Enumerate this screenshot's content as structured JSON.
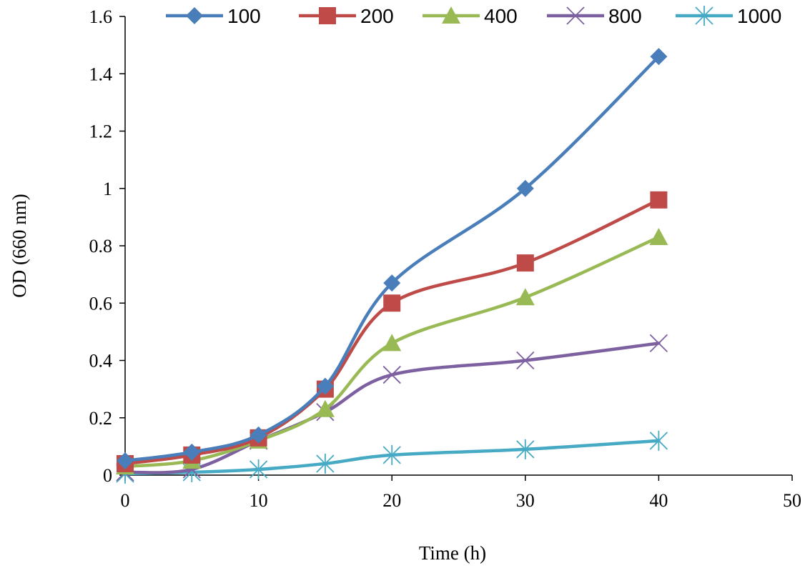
{
  "chart_data": {
    "type": "line",
    "title": "",
    "xlabel": "Time (h)",
    "ylabel": "OD (660 nm)",
    "xlim": [
      0,
      50
    ],
    "ylim": [
      0,
      1.6
    ],
    "x_ticks": [
      "0",
      "10",
      "20",
      "30",
      "40",
      "50"
    ],
    "y_ticks": [
      "0",
      "0.2",
      "0.4",
      "0.6",
      "0.8",
      "1",
      "1.2",
      "1.4",
      "1.6"
    ],
    "grid": false,
    "legend_position": "top",
    "x": [
      0,
      5,
      10,
      15,
      20,
      30,
      40
    ],
    "series": [
      {
        "name": "100",
        "color": "#4a7ebb",
        "marker": "diamond",
        "values": [
          0.05,
          0.08,
          0.14,
          0.31,
          0.67,
          1.0,
          1.46
        ]
      },
      {
        "name": "200",
        "color": "#be4b48",
        "marker": "square",
        "values": [
          0.04,
          0.07,
          0.13,
          0.3,
          0.6,
          0.74,
          0.96
        ]
      },
      {
        "name": "400",
        "color": "#98b954",
        "marker": "triangle",
        "values": [
          0.03,
          0.05,
          0.12,
          0.23,
          0.46,
          0.62,
          0.83
        ]
      },
      {
        "name": "800",
        "color": "#7d60a0",
        "marker": "x",
        "values": [
          0.01,
          0.02,
          0.12,
          0.22,
          0.35,
          0.4,
          0.46
        ]
      },
      {
        "name": "1000",
        "color": "#46aac5",
        "marker": "asterisk",
        "values": [
          0.005,
          0.01,
          0.02,
          0.04,
          0.07,
          0.09,
          0.12
        ]
      }
    ]
  }
}
